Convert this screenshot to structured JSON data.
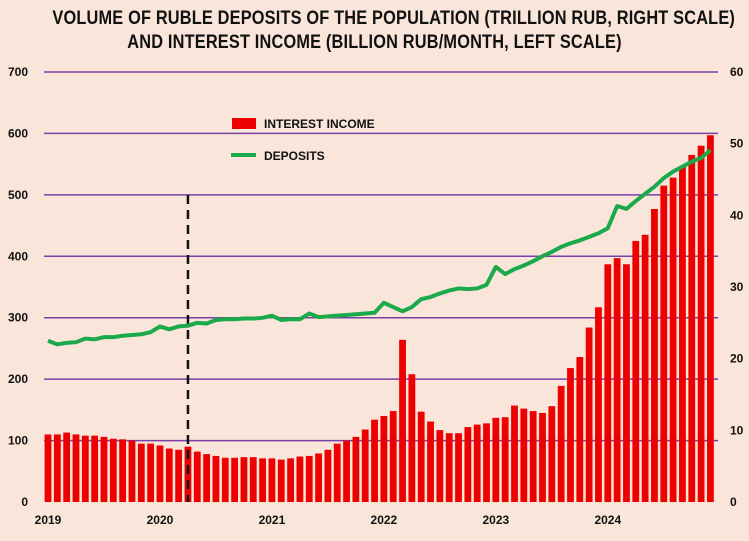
{
  "chart_data": {
    "type": "bar+line",
    "title_line1": "VOLUME OF RUBLE DEPOSITS OF THE POPULATION (TRILLION RUB, RIGHT SCALE)",
    "title_line2": "AND INTEREST INCOME (BILLION RUB/MONTH, LEFT SCALE)",
    "x_tick_labels": [
      "2019",
      "2020",
      "2021",
      "2022",
      "2023",
      "2024"
    ],
    "left_axis": {
      "range": [
        0,
        700
      ],
      "ticks": [
        "0",
        "100",
        "200",
        "300",
        "400",
        "500",
        "600",
        "700"
      ]
    },
    "right_axis": {
      "range": [
        0,
        60
      ],
      "ticks": [
        "0",
        "10",
        "20",
        "30",
        "40",
        "50",
        "60"
      ]
    },
    "grid": true,
    "legend_placement": "top-center",
    "marker_month": "2020-04",
    "series": [
      {
        "name": "INTEREST INCOME",
        "axis": "left",
        "kind": "bar",
        "color": "#ee0000",
        "values": [
          110,
          110,
          113,
          110,
          108,
          108,
          106,
          103,
          102,
          100,
          95,
          95,
          92,
          87,
          85,
          90,
          82,
          78,
          75,
          72,
          72,
          73,
          73,
          71,
          71,
          69,
          71,
          74,
          75,
          79,
          85,
          95,
          100,
          106,
          118,
          134,
          140,
          148,
          264,
          208,
          147,
          131,
          117,
          112,
          112,
          122,
          126,
          128,
          137,
          138,
          157,
          152,
          148,
          145,
          156,
          189,
          218,
          236,
          284,
          317,
          387,
          397,
          387,
          425,
          435,
          477,
          515,
          528,
          547,
          565,
          580,
          597
        ]
      },
      {
        "name": "DEPOSITS",
        "axis": "right",
        "kind": "line",
        "color": "#1aaa4a",
        "values": [
          22.5,
          22,
          22.2,
          22.3,
          22.8,
          22.7,
          23,
          23,
          23.2,
          23.3,
          23.4,
          23.7,
          24.5,
          24.1,
          24.5,
          24.6,
          25,
          24.9,
          25.4,
          25.5,
          25.5,
          25.6,
          25.6,
          25.7,
          26,
          25.4,
          25.5,
          25.5,
          26.3,
          25.8,
          25.9,
          26,
          26.1,
          26.2,
          26.3,
          26.4,
          27.8,
          27.2,
          26.6,
          27.2,
          28.3,
          28.6,
          29.1,
          29.5,
          29.8,
          29.7,
          29.8,
          30.3,
          32.8,
          31.8,
          32.5,
          33,
          33.6,
          34.3,
          34.9,
          35.6,
          36.1,
          36.5,
          37,
          37.5,
          38.2,
          41.3,
          40.9,
          42,
          43,
          44,
          45.2,
          46.1,
          46.8,
          47.5,
          48,
          49.1
        ]
      }
    ],
    "gridline_color": "#7b3fa8"
  }
}
